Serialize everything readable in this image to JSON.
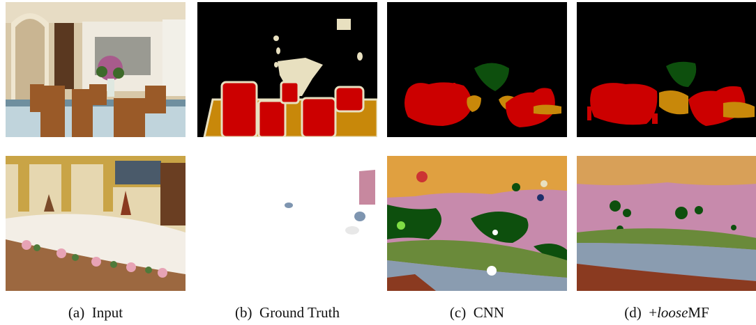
{
  "figure": {
    "captions": [
      {
        "label": "(a)",
        "text": "Input"
      },
      {
        "label": "(b)",
        "text": "Ground Truth"
      },
      {
        "label": "(c)",
        "text": "CNN"
      },
      {
        "label": "(d)",
        "text_prefix": "+",
        "text_italic": "loose",
        "text_suffix": "MF"
      }
    ],
    "rows": [
      {
        "scene": "dining room with chairs and table"
      },
      {
        "scene": "banquet hall with long table"
      }
    ],
    "colors": {
      "chair": "#cc0000",
      "table": "#c8880a",
      "flower": "#0d4f0d",
      "ceiling-wall": "#e8e0c0",
      "background": "#000000"
    }
  }
}
